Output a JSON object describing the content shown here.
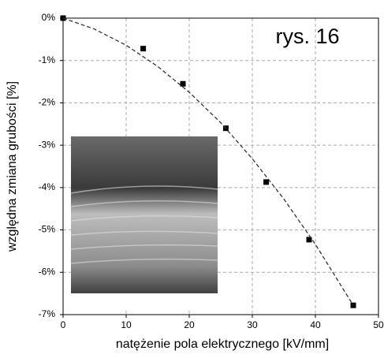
{
  "chart_data": {
    "type": "scatter",
    "xlabel": "natężenie pola elektrycznego [kV/mm]",
    "ylabel": "względna zmiana grubości [%]",
    "annotation": "rys. 16",
    "xlim": [
      0,
      50
    ],
    "xticks": [
      0,
      10,
      20,
      30,
      40,
      50
    ],
    "ylim": [
      -7,
      0
    ],
    "yticks": [
      {
        "value": 0,
        "label": "0%"
      },
      {
        "value": -1,
        "label": "-1%"
      },
      {
        "value": -2,
        "label": "-2%"
      },
      {
        "value": -3,
        "label": "-3%"
      },
      {
        "value": -4,
        "label": "-4%"
      },
      {
        "value": -5,
        "label": "-5%"
      },
      {
        "value": -6,
        "label": "-6%"
      },
      {
        "value": -7,
        "label": "-7%"
      }
    ],
    "grid": true,
    "series": [
      {
        "style": "markers",
        "color": "#000000",
        "x": [
          0,
          12.7,
          19,
          25.8,
          32.2,
          39,
          46
        ],
        "values": [
          0,
          -0.72,
          -1.55,
          -2.6,
          -3.87,
          -5.23,
          -6.78
        ]
      },
      {
        "style": "dashed",
        "color": "#333333",
        "x": [
          0,
          5,
          10,
          15,
          20,
          25,
          30,
          35,
          40,
          46
        ],
        "values": [
          0,
          -0.26,
          -0.64,
          -1.14,
          -1.75,
          -2.47,
          -3.32,
          -4.27,
          -5.34,
          -6.78
        ]
      }
    ]
  }
}
